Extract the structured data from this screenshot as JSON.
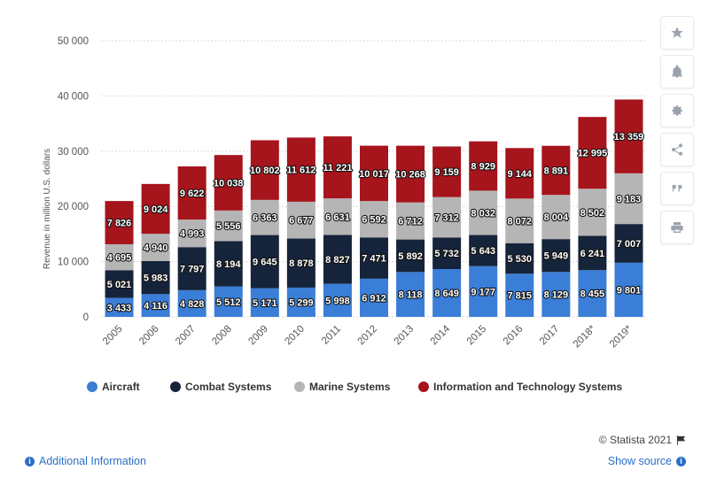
{
  "chart_data": {
    "type": "bar",
    "stacked": true,
    "categories": [
      "2005",
      "2006",
      "2007",
      "2008",
      "2009",
      "2010",
      "2011",
      "2012",
      "2013",
      "2014",
      "2015",
      "2016",
      "2017",
      "2018*",
      "2019*"
    ],
    "series": [
      {
        "name": "Aircraft",
        "color": "#3a7ed8",
        "values": [
          3433,
          4116,
          4828,
          5512,
          5171,
          5299,
          5998,
          6912,
          8118,
          8649,
          9177,
          7815,
          8129,
          8455,
          9801
        ],
        "labels": [
          "3 433",
          "4 116",
          "4 828",
          "5 512",
          "5 171",
          "5 299",
          "5 998",
          "6 912",
          "8 118",
          "8 649",
          "9 177",
          "7 815",
          "8 129",
          "8 455",
          "9 801"
        ]
      },
      {
        "name": "Combat Systems",
        "color": "#15243a",
        "values": [
          5021,
          5983,
          7797,
          8194,
          9645,
          8878,
          8827,
          7471,
          5892,
          5732,
          5643,
          5530,
          5949,
          6241,
          7007
        ],
        "labels": [
          "5 021",
          "5 983",
          "7 797",
          "8 194",
          "9 645",
          "8 878",
          "8 827",
          "7 471",
          "5 892",
          "5 732",
          "5 643",
          "5 530",
          "5 949",
          "6 241",
          "7 007"
        ]
      },
      {
        "name": "Marine Systems",
        "color": "#b5b5b5",
        "values": [
          4695,
          4940,
          4993,
          5556,
          6363,
          6677,
          6631,
          6592,
          6712,
          7312,
          8032,
          8072,
          8004,
          8502,
          9183
        ],
        "labels": [
          "4 695",
          "4 940",
          "4 993",
          "5 556",
          "6 363",
          "6 677",
          "6 631",
          "6 592",
          "6 712",
          "7 312",
          "8 032",
          "8 072",
          "8 004",
          "8 502",
          "9 183"
        ]
      },
      {
        "name": "Information and Technology Systems",
        "color": "#a6141c",
        "values": [
          7826,
          9024,
          9622,
          10038,
          10802,
          11612,
          11221,
          10017,
          10268,
          9159,
          8929,
          9144,
          8891,
          12995,
          13359
        ],
        "labels": [
          "7 826",
          "9 024",
          "9 622",
          "10 038",
          "10 802",
          "11 612",
          "11 221",
          "10 017",
          "10 268",
          "9 159",
          "8 929",
          "9 144",
          "8 891",
          "12 995",
          "13 359"
        ]
      }
    ],
    "ylabel": "Revenue in million U.S. dollars",
    "ylim": [
      0,
      50000
    ],
    "yticks": [
      0,
      10000,
      20000,
      30000,
      40000,
      50000
    ],
    "ytick_labels": [
      "0",
      "10 000",
      "20 000",
      "30 000",
      "40 000",
      "50 000"
    ],
    "grid": true,
    "legend_position": "bottom"
  },
  "sidebar": {
    "buttons": [
      {
        "name": "favorite-star",
        "icon": "star-icon"
      },
      {
        "name": "notification",
        "icon": "bell-icon"
      },
      {
        "name": "settings",
        "icon": "gear-icon"
      },
      {
        "name": "share",
        "icon": "share-icon"
      },
      {
        "name": "cite",
        "icon": "quote-icon"
      },
      {
        "name": "print",
        "icon": "printer-icon"
      }
    ]
  },
  "footer": {
    "copyright": "© Statista 2021",
    "additional_info": "Additional Information",
    "show_source": "Show source"
  }
}
